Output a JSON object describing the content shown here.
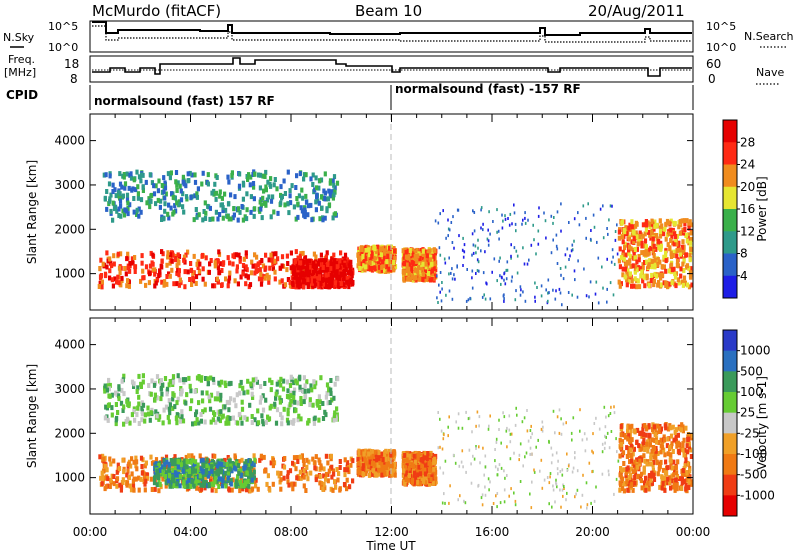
{
  "header": {
    "station": "McMurdo (fitACF)",
    "beam": "Beam 10",
    "date": "20/Aug/2011"
  },
  "noise_panel": {
    "left_label_1": "N.Sky",
    "left_ticks": [
      "10^5",
      "10^0"
    ],
    "right_ticks": [
      "10^5",
      "10^0"
    ],
    "right_label": "N.Search"
  },
  "freq_panel": {
    "left_label_1": "Freq.",
    "left_label_2": "[MHz]",
    "left_ticks": [
      "18",
      "8"
    ],
    "right_ticks": [
      "60",
      "0"
    ],
    "right_label": "Nave"
  },
  "cpid_panel": {
    "label": "CPID",
    "segments": [
      "normalsound (fast) 157 RF",
      "normalsound (fast) -157 RF"
    ]
  },
  "time_axis": {
    "ticks": [
      "00:00",
      "04:00",
      "08:00",
      "12:00",
      "16:00",
      "20:00",
      "00:00"
    ],
    "label": "Time UT"
  },
  "chart_data": [
    {
      "type": "heatmap",
      "quantity": "Power",
      "ylabel": "Slant Range [km]",
      "yticks": [
        "1000",
        "2000",
        "3000",
        "4000"
      ],
      "ylim": [
        180,
        4600
      ],
      "xlim_hours": [
        0,
        24
      ],
      "colorbar_label": "Power [dB]",
      "colorbar_ticks": [
        "4",
        "8",
        "12",
        "16",
        "20",
        "24",
        "28"
      ],
      "colorbar_colors": [
        "#1e1ee6",
        "#2a62c8",
        "#2e9a8a",
        "#3ab04a",
        "#e6e632",
        "#f08c1e",
        "#ff2a14",
        "#e60000"
      ],
      "echo_regions": [
        {
          "t_start": 0.3,
          "t_end": 10.2,
          "range_low": 700,
          "range_high": 1500,
          "power_db": 22
        },
        {
          "t_start": 8.0,
          "t_end": 10.4,
          "range_low": 700,
          "range_high": 1300,
          "power_db": 28
        },
        {
          "t_start": 10.6,
          "t_end": 12.1,
          "range_low": 1050,
          "range_high": 1600,
          "power_db": 20
        },
        {
          "t_start": 12.4,
          "t_end": 13.7,
          "range_low": 850,
          "range_high": 1550,
          "power_db": 20
        },
        {
          "t_start": 0.5,
          "t_end": 9.8,
          "range_low": 2200,
          "range_high": 3300,
          "power_db": 8
        },
        {
          "t_start": 13.7,
          "t_end": 21.0,
          "range_low": 300,
          "range_high": 2600,
          "power_db": 4
        },
        {
          "t_start": 21.0,
          "t_end": 23.9,
          "range_low": 700,
          "range_high": 2200,
          "power_db": 18
        }
      ]
    },
    {
      "type": "heatmap",
      "quantity": "Velocity",
      "ylabel": "Slant Range [km]",
      "yticks": [
        "1000",
        "2000",
        "3000",
        "4000"
      ],
      "ylim": [
        180,
        4600
      ],
      "xlim_hours": [
        0,
        24
      ],
      "colorbar_label": "Velocity [m s-1]",
      "colorbar_ticks": [
        "1000",
        "500",
        "100",
        "25",
        "-25",
        "-100",
        "-500",
        "-1000"
      ],
      "colorbar_colors": [
        "#2a3ac8",
        "#2a70c0",
        "#3a9a5a",
        "#66cc33",
        "#c8c8c8",
        "#f0a028",
        "#f07a14",
        "#f03c14",
        "#e60000"
      ],
      "echo_regions": [
        {
          "t_start": 0.3,
          "t_end": 10.4,
          "range_low": 700,
          "range_high": 1500,
          "velocity": -100
        },
        {
          "t_start": 2.5,
          "t_end": 6.5,
          "range_low": 800,
          "range_high": 1400,
          "velocity": 100
        },
        {
          "t_start": 10.6,
          "t_end": 12.1,
          "range_low": 1050,
          "range_high": 1600,
          "velocity": -100
        },
        {
          "t_start": 12.4,
          "t_end": 13.7,
          "range_low": 850,
          "range_high": 1550,
          "velocity": -100
        },
        {
          "t_start": 0.5,
          "t_end": 9.8,
          "range_low": 2200,
          "range_high": 3300,
          "velocity": 25
        },
        {
          "t_start": 13.7,
          "t_end": 21.0,
          "range_low": 300,
          "range_high": 2600,
          "velocity": 0
        },
        {
          "t_start": 21.0,
          "t_end": 23.9,
          "range_low": 700,
          "range_high": 2200,
          "velocity": -100
        }
      ]
    }
  ]
}
